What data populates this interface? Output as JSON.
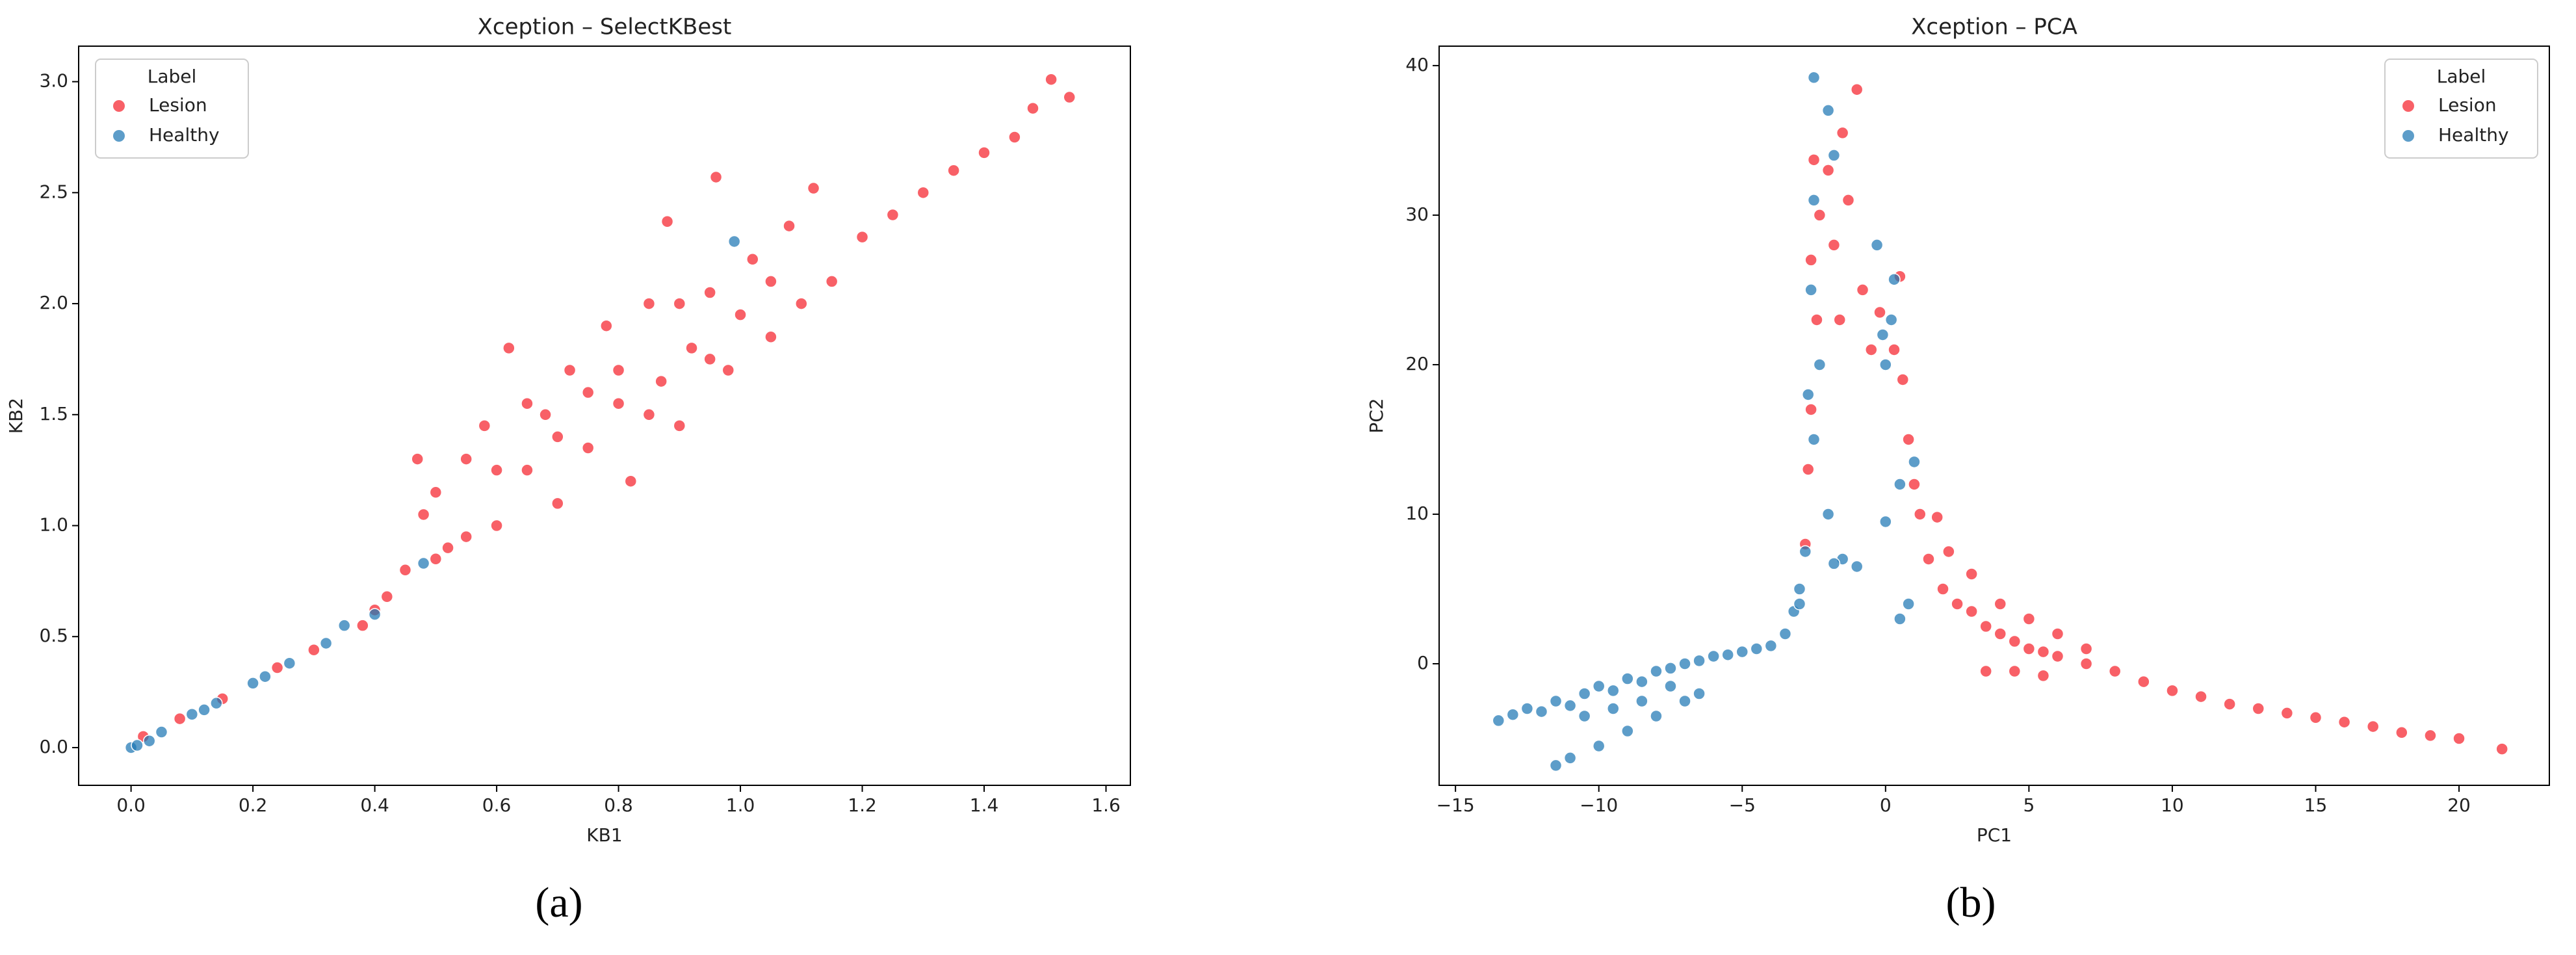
{
  "chart_data": [
    {
      "type": "scatter",
      "title": "Xception – SelectKBest",
      "x_label": "KB1",
      "y_label": "KB2",
      "caption": "(a)",
      "xlim": [
        -0.086,
        1.64
      ],
      "ylim": [
        -0.17,
        3.16
      ],
      "xticks": [
        {
          "value": 0,
          "label": "0.0"
        },
        0.2,
        0.4,
        0.6,
        0.8,
        {
          "value": 1,
          "label": "1.0"
        },
        1.2,
        1.4,
        1.6
      ],
      "yticks": [
        {
          "value": 0,
          "label": "0.0"
        },
        0.5,
        {
          "value": 1,
          "label": "1.0"
        },
        1.5,
        {
          "value": 2,
          "label": "2.0"
        },
        2.5,
        {
          "value": 3,
          "label": "3.0"
        }
      ],
      "legend_title": "Label",
      "legend": "upper left",
      "series": [
        {
          "name": "Lesion",
          "color": "#f5222d",
          "x": [
            0.02,
            0.08,
            0.15,
            0.24,
            0.3,
            0.38,
            0.42,
            0.45,
            0.48,
            0.47,
            0.5,
            0.52,
            0.55,
            0.58,
            0.6,
            0.62,
            0.65,
            0.68,
            0.7,
            0.72,
            0.75,
            0.78,
            0.8,
            0.82,
            0.85,
            0.87,
            0.88,
            0.9,
            0.92,
            0.95,
            0.96,
            0.98,
            1.0,
            1.02,
            1.05,
            1.08,
            1.1,
            1.12,
            1.15,
            1.2,
            1.25,
            1.3,
            1.35,
            1.4,
            1.45,
            1.48,
            1.51,
            1.54,
            0.55,
            0.65,
            0.75,
            0.85,
            0.95,
            0.7,
            0.6,
            1.05,
            0.9,
            0.8,
            0.5,
            0.4
          ],
          "y": [
            0.05,
            0.13,
            0.22,
            0.36,
            0.44,
            0.55,
            0.68,
            0.8,
            1.05,
            1.3,
            1.15,
            0.9,
            1.3,
            1.45,
            1.0,
            1.8,
            1.25,
            1.5,
            1.1,
            1.7,
            1.35,
            1.9,
            1.55,
            1.2,
            2.0,
            1.65,
            2.37,
            1.45,
            1.8,
            2.05,
            2.57,
            1.7,
            1.95,
            2.2,
            1.85,
            2.35,
            2.0,
            2.52,
            2.1,
            2.3,
            2.4,
            2.5,
            2.6,
            2.68,
            2.75,
            2.88,
            3.01,
            2.93,
            0.95,
            1.55,
            1.6,
            1.5,
            1.75,
            1.4,
            1.25,
            2.1,
            2.0,
            1.7,
            0.85,
            0.62
          ]
        },
        {
          "name": "Healthy",
          "color": "#1f77b4",
          "x": [
            0,
            0.01,
            0.03,
            0.05,
            0.1,
            0.14,
            0.2,
            0.26,
            0.32,
            0.35,
            0.4,
            0.48,
            0.99,
            0.12,
            0.22
          ],
          "y": [
            0,
            0.01,
            0.03,
            0.07,
            0.15,
            0.2,
            0.29,
            0.38,
            0.47,
            0.55,
            0.6,
            0.83,
            2.28,
            0.17,
            0.32
          ]
        }
      ]
    },
    {
      "type": "scatter",
      "title": "Xception – PCA",
      "x_label": "PC1",
      "y_label": "PC2",
      "caption": "(b)",
      "xlim": [
        -15.57,
        23.15
      ],
      "ylim": [
        -8.13,
        41.3
      ],
      "xticks": [
        {
          "value": -15,
          "label": "−15"
        },
        {
          "value": -10,
          "label": "−10"
        },
        {
          "value": -5,
          "label": "−5"
        },
        0,
        5,
        10,
        15,
        20
      ],
      "yticks": [
        0,
        10,
        20,
        30,
        40
      ],
      "legend_title": "Label",
      "legend": "upper right",
      "series": [
        {
          "name": "Lesion",
          "color": "#f5222d",
          "x": [
            -2.5,
            -2,
            -1.5,
            -1,
            -2.3,
            -1.8,
            -1.3,
            -2.6,
            -2.4,
            -2.6,
            -2.7,
            -2.8,
            -0.2,
            0.3,
            0.6,
            -0.5,
            0.8,
            1,
            1.2,
            1.5,
            2,
            2.5,
            3,
            3.5,
            4,
            4.5,
            5,
            5.5,
            6,
            7,
            8,
            9,
            10,
            11,
            12,
            13,
            14,
            15,
            16,
            17,
            18,
            19,
            20,
            21.5,
            3,
            4,
            5,
            6,
            7,
            3.5,
            4.5,
            5.5,
            2.2,
            1.8,
            0.5,
            -1.6,
            -0.8
          ],
          "y": [
            33.7,
            33,
            35.5,
            38.4,
            30,
            28,
            31,
            27,
            23,
            17,
            13,
            8,
            23.5,
            21,
            19,
            21,
            15,
            12,
            10,
            7,
            5,
            4,
            3.5,
            2.5,
            2,
            1.5,
            1,
            0.8,
            0.5,
            0,
            -0.5,
            -1.2,
            -1.8,
            -2.2,
            -2.7,
            -3,
            -3.3,
            -3.6,
            -3.9,
            -4.2,
            -4.6,
            -4.8,
            -5,
            -5.7,
            6,
            4,
            3,
            2,
            1,
            -0.5,
            -0.5,
            -0.8,
            7.5,
            9.8,
            25.9,
            23,
            25
          ]
        },
        {
          "name": "Healthy",
          "color": "#1f77b4",
          "x": [
            -13.5,
            -13,
            -12.5,
            -12,
            -11.5,
            -11,
            -10.5,
            -10,
            -9.5,
            -9,
            -8.5,
            -8,
            -7.5,
            -7,
            -6.5,
            -6,
            -5.5,
            -5,
            -4.5,
            -4,
            -3.5,
            -3.2,
            -3,
            -11.5,
            -11,
            -10,
            -9,
            -8,
            -7,
            -6.5,
            -10.5,
            -9.5,
            -8.5,
            -7.5,
            -2.5,
            -2,
            -1.8,
            -2.5,
            -2.6,
            -2.3,
            -2.7,
            -2.5,
            -2,
            -1.5,
            -1,
            -0.3,
            0.3,
            0.2,
            0,
            0.5,
            1,
            0,
            0.8,
            0.5,
            -0.1,
            -2.8,
            -3,
            -1.8
          ],
          "y": [
            -3.8,
            -3.4,
            -3,
            -3.2,
            -2.5,
            -2.8,
            -2,
            -1.5,
            -1.8,
            -1,
            -1.2,
            -0.5,
            -0.3,
            0,
            0.2,
            0.5,
            0.6,
            0.8,
            1,
            1.2,
            2,
            3.5,
            5,
            -6.8,
            -6.3,
            -5.5,
            -4.5,
            -3.5,
            -2.5,
            -2,
            -3.5,
            -3,
            -2.5,
            -1.5,
            39.2,
            37,
            34,
            31,
            25,
            20,
            18,
            15,
            10,
            7,
            6.5,
            28,
            25.7,
            23,
            20,
            12,
            13.5,
            9.5,
            4,
            3,
            22,
            7.5,
            4,
            6.7
          ]
        }
      ]
    }
  ]
}
